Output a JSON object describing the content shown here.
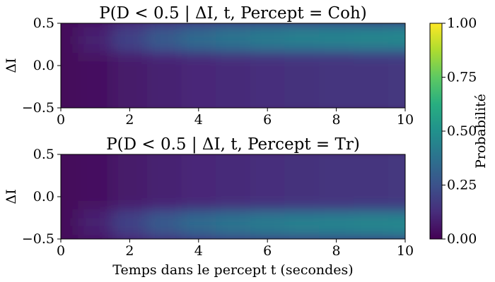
{
  "chart_data": [
    {
      "type": "heatmap",
      "title": "P(D < 0.5 | ΔI, t, Percept = Coh)",
      "xlabel": "",
      "ylabel": "ΔI",
      "xlim": [
        0,
        10
      ],
      "ylim": [
        -0.5,
        0.5
      ],
      "xticks": [
        "0",
        "2",
        "4",
        "6",
        "8",
        "10"
      ],
      "yticks": [
        "0.5",
        "0.0",
        "−0.5"
      ],
      "x": [
        0,
        1,
        2,
        3,
        4,
        5,
        6,
        7,
        8,
        9,
        10
      ],
      "y": [
        0.5,
        0.4,
        0.3,
        0.2,
        0.1,
        0.0,
        -0.1,
        -0.2,
        -0.3,
        -0.4,
        -0.5
      ],
      "values": [
        [
          0.02,
          0.06,
          0.13,
          0.18,
          0.22,
          0.25,
          0.27,
          0.28,
          0.29,
          0.29,
          0.3
        ],
        [
          0.02,
          0.08,
          0.18,
          0.26,
          0.32,
          0.36,
          0.39,
          0.41,
          0.42,
          0.43,
          0.44
        ],
        [
          0.02,
          0.09,
          0.2,
          0.29,
          0.35,
          0.39,
          0.42,
          0.44,
          0.45,
          0.46,
          0.47
        ],
        [
          0.02,
          0.08,
          0.17,
          0.24,
          0.29,
          0.32,
          0.34,
          0.35,
          0.36,
          0.37,
          0.37
        ],
        [
          0.02,
          0.05,
          0.09,
          0.12,
          0.14,
          0.16,
          0.17,
          0.18,
          0.18,
          0.19,
          0.19
        ],
        [
          0.02,
          0.04,
          0.07,
          0.09,
          0.11,
          0.12,
          0.13,
          0.14,
          0.15,
          0.15,
          0.16
        ],
        [
          0.02,
          0.04,
          0.07,
          0.09,
          0.11,
          0.12,
          0.13,
          0.14,
          0.15,
          0.15,
          0.16
        ],
        [
          0.02,
          0.04,
          0.07,
          0.09,
          0.11,
          0.12,
          0.13,
          0.14,
          0.15,
          0.15,
          0.16
        ],
        [
          0.02,
          0.04,
          0.07,
          0.09,
          0.11,
          0.12,
          0.13,
          0.14,
          0.15,
          0.15,
          0.16
        ],
        [
          0.02,
          0.04,
          0.07,
          0.09,
          0.11,
          0.12,
          0.13,
          0.14,
          0.15,
          0.15,
          0.16
        ],
        [
          0.02,
          0.04,
          0.07,
          0.09,
          0.11,
          0.12,
          0.13,
          0.14,
          0.15,
          0.15,
          0.16
        ]
      ]
    },
    {
      "type": "heatmap",
      "title": "P(D < 0.5 | ΔI, t, Percept = Tr)",
      "xlabel": "Temps dans le percept t (secondes)",
      "ylabel": "ΔI",
      "xlim": [
        0,
        10
      ],
      "ylim": [
        -0.5,
        0.5
      ],
      "xticks": [
        "0",
        "2",
        "4",
        "6",
        "8",
        "10"
      ],
      "yticks": [
        "0.5",
        "0.0",
        "−0.5"
      ],
      "x": [
        0,
        1,
        2,
        3,
        4,
        5,
        6,
        7,
        8,
        9,
        10
      ],
      "y": [
        0.5,
        0.4,
        0.3,
        0.2,
        0.1,
        0.0,
        -0.1,
        -0.2,
        -0.3,
        -0.4,
        -0.5
      ],
      "values": [
        [
          0.02,
          0.04,
          0.07,
          0.09,
          0.11,
          0.12,
          0.13,
          0.14,
          0.15,
          0.15,
          0.16
        ],
        [
          0.02,
          0.04,
          0.07,
          0.09,
          0.11,
          0.12,
          0.13,
          0.14,
          0.15,
          0.15,
          0.16
        ],
        [
          0.02,
          0.04,
          0.07,
          0.09,
          0.11,
          0.12,
          0.13,
          0.14,
          0.15,
          0.15,
          0.16
        ],
        [
          0.02,
          0.04,
          0.07,
          0.09,
          0.11,
          0.12,
          0.13,
          0.14,
          0.15,
          0.15,
          0.16
        ],
        [
          0.02,
          0.04,
          0.07,
          0.09,
          0.11,
          0.12,
          0.13,
          0.14,
          0.15,
          0.15,
          0.16
        ],
        [
          0.02,
          0.04,
          0.07,
          0.09,
          0.11,
          0.12,
          0.13,
          0.14,
          0.15,
          0.15,
          0.16
        ],
        [
          0.02,
          0.05,
          0.09,
          0.12,
          0.14,
          0.16,
          0.17,
          0.18,
          0.18,
          0.19,
          0.19
        ],
        [
          0.02,
          0.08,
          0.17,
          0.24,
          0.29,
          0.32,
          0.34,
          0.35,
          0.36,
          0.37,
          0.37
        ],
        [
          0.02,
          0.09,
          0.2,
          0.29,
          0.35,
          0.39,
          0.42,
          0.44,
          0.45,
          0.46,
          0.47
        ],
        [
          0.02,
          0.08,
          0.18,
          0.26,
          0.32,
          0.36,
          0.39,
          0.41,
          0.42,
          0.43,
          0.44
        ],
        [
          0.02,
          0.06,
          0.13,
          0.18,
          0.22,
          0.25,
          0.27,
          0.28,
          0.29,
          0.29,
          0.3
        ]
      ]
    }
  ],
  "colorbar": {
    "label": "Probabilité",
    "range": [
      0,
      1
    ],
    "ticks": [
      "0.00",
      "0.25",
      "0.50",
      "0.75",
      "1.00"
    ],
    "colormap": "viridis"
  }
}
